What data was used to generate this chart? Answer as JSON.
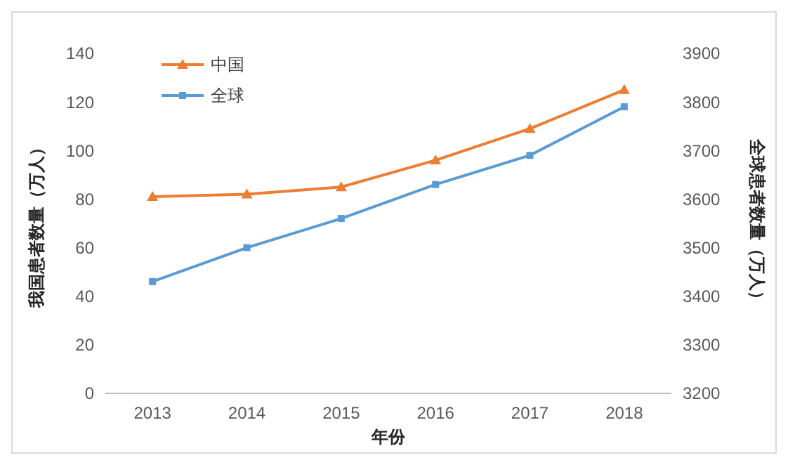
{
  "chart_data": {
    "type": "line",
    "xlabel": "年份",
    "ylabel": "我国患者数量（万人）",
    "y2label": "全球患者数量（万人）",
    "categories": [
      "2013",
      "2014",
      "2015",
      "2016",
      "2017",
      "2018"
    ],
    "series": [
      {
        "name": "中国",
        "color": "#ed7d31",
        "marker": "triangle",
        "values": [
          81,
          82,
          85,
          96,
          109,
          125
        ]
      },
      {
        "name": "全球",
        "color": "#5b9bd5",
        "marker": "square",
        "axis": "y2",
        "values": [
          3430,
          3500,
          3560,
          3630,
          3690,
          3790
        ]
      }
    ],
    "ylim": [
      0,
      140
    ],
    "yticks": [
      0,
      20,
      40,
      60,
      80,
      100,
      120,
      140
    ],
    "y2lim": [
      3200,
      3900
    ],
    "y2ticks": [
      3200,
      3300,
      3400,
      3500,
      3600,
      3700,
      3800,
      3900
    ],
    "grid": false,
    "legend": "top left"
  }
}
